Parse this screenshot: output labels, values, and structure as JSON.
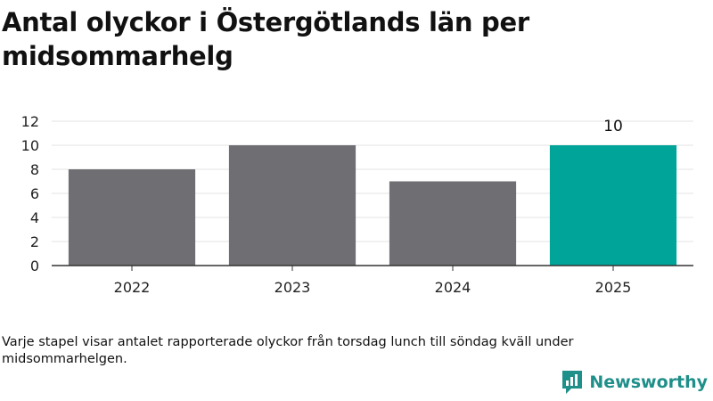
{
  "header": {
    "title": "Antal olyckor i Östergötlands län per midsommarhelg"
  },
  "chart_data": {
    "type": "bar",
    "categories": [
      "2022",
      "2023",
      "2024",
      "2025"
    ],
    "values": [
      8,
      10,
      7,
      10
    ],
    "yticks": [
      0,
      2,
      4,
      6,
      8,
      10,
      12
    ],
    "ylim": [
      0,
      12
    ],
    "grid": true,
    "data_labels": [
      null,
      null,
      null,
      "10"
    ],
    "colors": {
      "default": "#6f6e73",
      "highlight": "#00a499",
      "highlight_index": 3
    }
  },
  "footnote": {
    "text": "Varje stapel visar antalet rapporterade olyckor från torsdag lunch till söndag kväll under midsommarhelgen."
  },
  "brand": {
    "name": "Newsworthy",
    "icon": "newsworthy-logo-icon",
    "color": "#1f8f8a"
  }
}
